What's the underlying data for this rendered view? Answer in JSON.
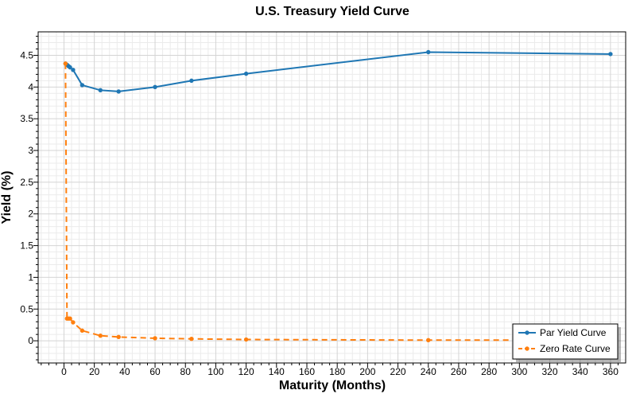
{
  "chart_data": {
    "type": "line",
    "title": "U.S. Treasury Yield Curve",
    "xlabel": "Maturity (Months)",
    "ylabel": "Yield (%)",
    "xlim": [
      -17,
      370
    ],
    "ylim": [
      -0.35,
      4.87
    ],
    "x_ticks": [
      0,
      20,
      40,
      60,
      80,
      100,
      120,
      140,
      160,
      180,
      200,
      220,
      240,
      260,
      280,
      300,
      320,
      340,
      360
    ],
    "y_ticks": [
      0,
      0.5,
      1,
      1.5,
      2,
      2.5,
      3,
      3.5,
      4,
      4.5
    ],
    "grid": true,
    "legend_position": "bottom-right",
    "series": [
      {
        "name": "Par Yield Curve",
        "color": "#1f77b4",
        "line_style": "solid",
        "x": [
          1,
          2,
          3,
          4,
          6,
          12,
          24,
          36,
          60,
          84,
          120,
          240,
          360
        ],
        "y": [
          4.37,
          4.35,
          4.33,
          4.31,
          4.27,
          4.03,
          3.95,
          3.93,
          4.0,
          4.1,
          4.21,
          4.55,
          4.52
        ]
      },
      {
        "name": "Zero Rate Curve",
        "color": "#ff7f0e",
        "line_style": "dashed",
        "x": [
          1,
          2,
          3,
          4,
          6,
          12,
          24,
          36,
          60,
          84,
          120,
          240,
          360
        ],
        "y": [
          4.37,
          0.35,
          0.35,
          0.35,
          0.29,
          0.16,
          0.08,
          0.06,
          0.04,
          0.03,
          0.02,
          0.01,
          0.01
        ]
      }
    ]
  }
}
